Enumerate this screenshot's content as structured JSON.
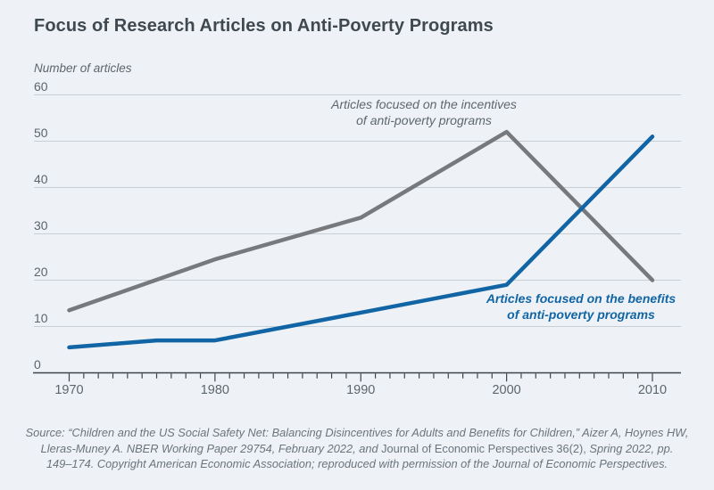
{
  "page": {
    "background": "#eef2f6"
  },
  "title": "Focus of Research Articles on Anti-Poverty Programs",
  "y_axis_label": "Number of articles",
  "annotations": {
    "incentives": {
      "line1": "Articles focused on the incentives",
      "line2": "of anti-poverty programs",
      "color": "#5d666e"
    },
    "benefits": {
      "line1": "Articles focused on the benefits",
      "line2": "of anti-poverty programs",
      "color": "#1165a4"
    }
  },
  "footer": {
    "line1": "Source: “Children and the US Social Safety Net: Balancing Disincentives for Adults and Benefits for Children,” Aizer A, Hoynes HW,",
    "line2_italic_a": "Lleras-Muney A. NBER Working Paper 29754, February 2022, and ",
    "line2_upright": "Journal of Economic Perspectives 36(2),",
    "line2_italic_b": " Spring 2022, pp.",
    "line3": "149–174. Copyright American Economic Association; reproduced with permission of the Journal of Economic Perspectives."
  },
  "chart_data": {
    "type": "line",
    "title": "Focus of Research Articles on Anti-Poverty Programs",
    "ylabel": "Number of articles",
    "xlim": [
      1970,
      2010
    ],
    "ylim": [
      0,
      60
    ],
    "yticks": [
      0,
      10,
      20,
      30,
      40,
      50,
      60
    ],
    "xticks": [
      1970,
      1980,
      1990,
      2000,
      2010
    ],
    "x_minor_tick_step": 1,
    "grid": "horizontal",
    "legend_position": "inline-annotations",
    "series": [
      {
        "name": "Articles focused on the incentives of anti-poverty programs",
        "color": "#77797c",
        "x": [
          1970,
          1980,
          1990,
          2000,
          2010
        ],
        "values": [
          13.5,
          24.5,
          33.5,
          52,
          20
        ]
      },
      {
        "name": "Articles focused on the benefits of anti-poverty programs",
        "color": "#1165a4",
        "x": [
          1970,
          1976,
          1980,
          1990,
          2000,
          2010
        ],
        "values": [
          5.5,
          7,
          7,
          13,
          19,
          51
        ]
      }
    ],
    "colors": {
      "gridline": "#c6cfd6",
      "axis": "#3c454d",
      "tick_label": "#5c656d"
    }
  }
}
